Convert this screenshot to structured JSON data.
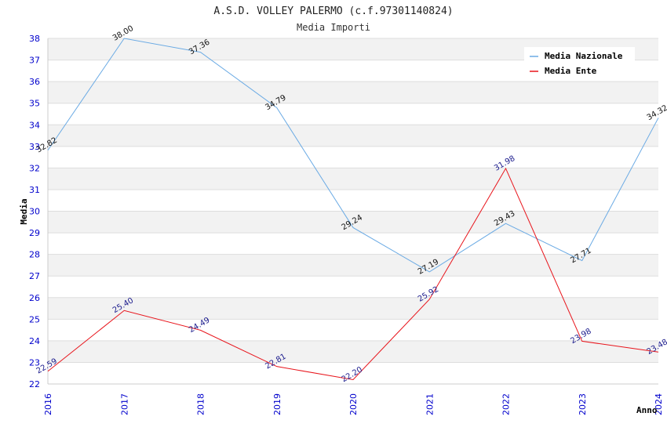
{
  "chart_data": {
    "type": "line",
    "title": "A.S.D. VOLLEY PALERMO (c.f.97301140824)",
    "subtitle": "Media Importi",
    "xlabel": "Anno",
    "ylabel": "Media",
    "x": [
      "2016",
      "2017",
      "2018",
      "2019",
      "2020",
      "2021",
      "2022",
      "2023",
      "2024"
    ],
    "ylim": [
      22,
      38
    ],
    "yticks": [
      "22",
      "23",
      "24",
      "25",
      "26",
      "27",
      "28",
      "29",
      "30",
      "31",
      "32",
      "33",
      "34",
      "35",
      "36",
      "37",
      "38"
    ],
    "legend_position": "top-right",
    "series": [
      {
        "name": "Media Nazionale",
        "color": "#6aaae4",
        "values": [
          32.82,
          38.0,
          37.36,
          34.79,
          29.24,
          27.19,
          29.43,
          27.71,
          34.32
        ],
        "labels": [
          "32.82",
          "38.00",
          "37.36",
          "34.79",
          "29.24",
          "27.19",
          "29.43",
          "27.71",
          "34.32"
        ]
      },
      {
        "name": "Media Ente",
        "color": "#e8141b",
        "values": [
          22.59,
          25.4,
          24.49,
          22.81,
          22.2,
          25.92,
          31.98,
          23.98,
          23.48
        ],
        "labels": [
          "22.59",
          "25.40",
          "24.49",
          "22.81",
          "22.20",
          "25.92",
          "31.98",
          "23.98",
          "23.48"
        ]
      }
    ]
  }
}
